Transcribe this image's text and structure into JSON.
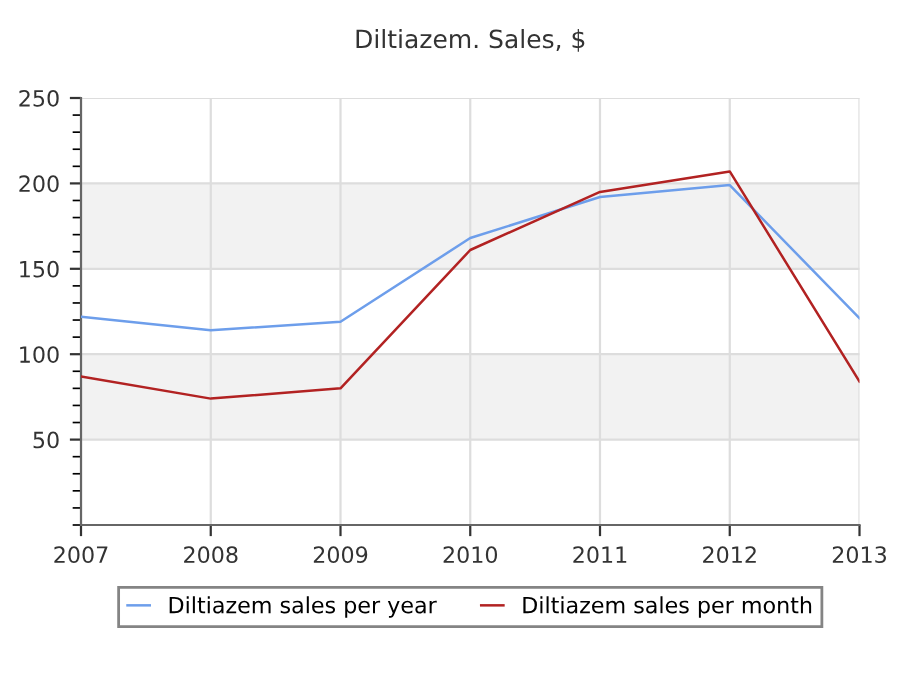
{
  "chart_data": {
    "type": "line",
    "title": "Diltiazem. Sales, $",
    "x": [
      2007,
      2008,
      2009,
      2010,
      2011,
      2012,
      2013
    ],
    "series": [
      {
        "name": "Diltiazem sales per year",
        "color": "#6d9eeb",
        "values": [
          122,
          114,
          119,
          168,
          192,
          199,
          121
        ]
      },
      {
        "name": "Diltiazem sales per month",
        "color": "#b22222",
        "values": [
          87,
          74,
          80,
          161,
          195,
          207,
          84
        ]
      }
    ],
    "xlim": [
      2007,
      2013
    ],
    "xticks": [
      2007,
      2008,
      2009,
      2010,
      2011,
      2012,
      2013
    ],
    "ylim": [
      0,
      250
    ],
    "yticks": [
      50,
      100,
      150,
      200,
      250
    ],
    "bands": [
      {
        "axis": "y",
        "from": 50,
        "to": 100,
        "color": "#f2f2f2"
      },
      {
        "axis": "y",
        "from": 150,
        "to": 200,
        "color": "#f2f2f2"
      }
    ],
    "grid": true,
    "legend": "bottom",
    "marker": "none",
    "line_style": "solid"
  }
}
